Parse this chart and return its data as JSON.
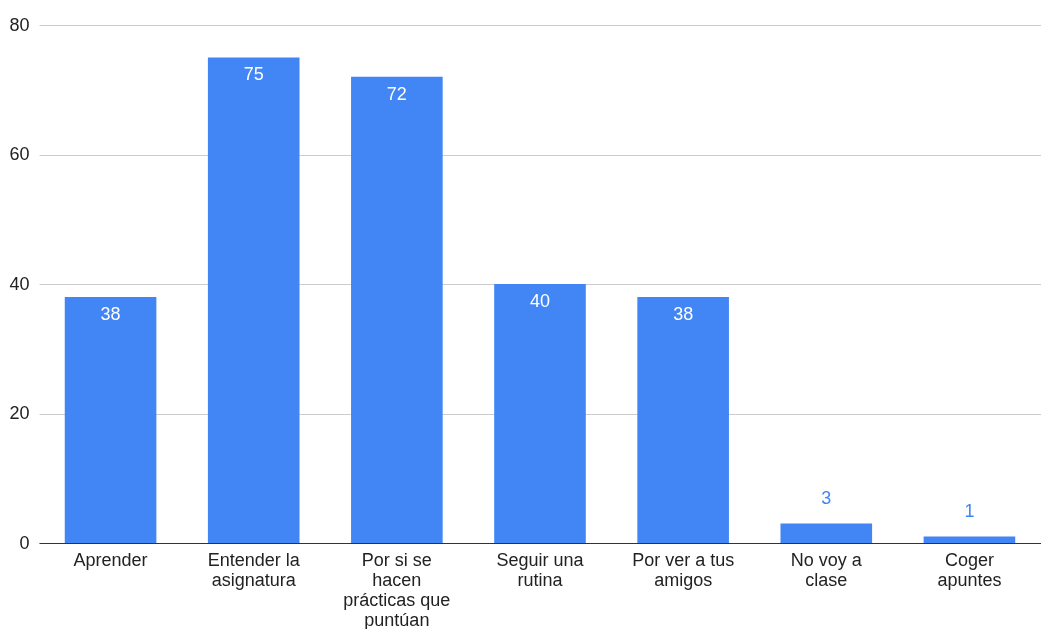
{
  "chart_data": {
    "type": "bar",
    "categories": [
      "Aprender",
      "Entender la asignatura",
      "Por si se hacen prácticas que puntúan",
      "Seguir una rutina",
      "Por ver a tus amigos",
      "No voy a clase",
      "Coger apuntes"
    ],
    "values": [
      38,
      75,
      72,
      40,
      38,
      3,
      1
    ],
    "color": "#4285f4",
    "ylim": [
      0,
      80
    ],
    "yticks": [
      0,
      20,
      40,
      60,
      80
    ],
    "grid": "y",
    "data_labels": true
  }
}
